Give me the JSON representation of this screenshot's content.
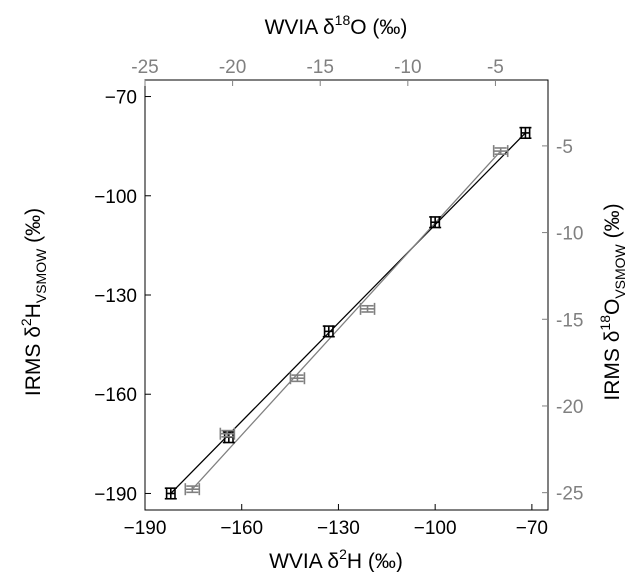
{
  "chart_data": {
    "type": "scatter",
    "axes": {
      "bottom": {
        "label_prefix": "WVIA  δ",
        "label_sup": "2",
        "label_suffix": "H (‰)",
        "range": [
          -190,
          -65
        ],
        "ticks": [
          -190,
          -160,
          -130,
          -100,
          -70
        ]
      },
      "top": {
        "label_prefix": "WVIA  δ",
        "label_sup": "18",
        "label_suffix": "O (‰)",
        "range": [
          -25,
          -2
        ],
        "ticks": [
          -25,
          -20,
          -15,
          -10,
          -5
        ]
      },
      "left": {
        "label_prefix": "IRMS  δ",
        "label_sup": "2",
        "label_mid": "H",
        "label_sub": "VSMOW",
        "label_suffix": " (‰)",
        "range": [
          -195,
          -65
        ],
        "ticks": [
          -190,
          -160,
          -130,
          -100,
          -70
        ]
      },
      "right": {
        "label_prefix": "IRMS  δ",
        "label_sup": "18",
        "label_mid": "O",
        "label_sub": "VSMOW",
        "label_suffix": " (‰)",
        "range": [
          -26,
          -1.2
        ],
        "ticks": [
          -25,
          -20,
          -15,
          -10,
          -5
        ]
      }
    },
    "series": [
      {
        "axes": "bottom-left",
        "color": "#000000",
        "points": [
          [
            -182,
            -190
          ],
          [
            -164,
            -173
          ],
          [
            -133,
            -141
          ],
          [
            -100,
            -108
          ],
          [
            -72,
            -81
          ]
        ],
        "xerr": 1.3,
        "yerr": 1.6,
        "fit": [
          [
            -182,
            -190
          ],
          [
            -72,
            -81
          ]
        ]
      },
      {
        "axes": "top-right",
        "color": "#808080",
        "points": [
          [
            -22.3,
            -24.8
          ],
          [
            -20.3,
            -21.6
          ],
          [
            -16.3,
            -18.4
          ],
          [
            -12.3,
            -14.4
          ],
          [
            -4.7,
            -5.3
          ]
        ],
        "xerr": 0.4,
        "yerr": 0.18,
        "fit": [
          [
            -22.3,
            -24.8
          ],
          [
            -4.7,
            -5.3
          ]
        ]
      }
    ]
  }
}
